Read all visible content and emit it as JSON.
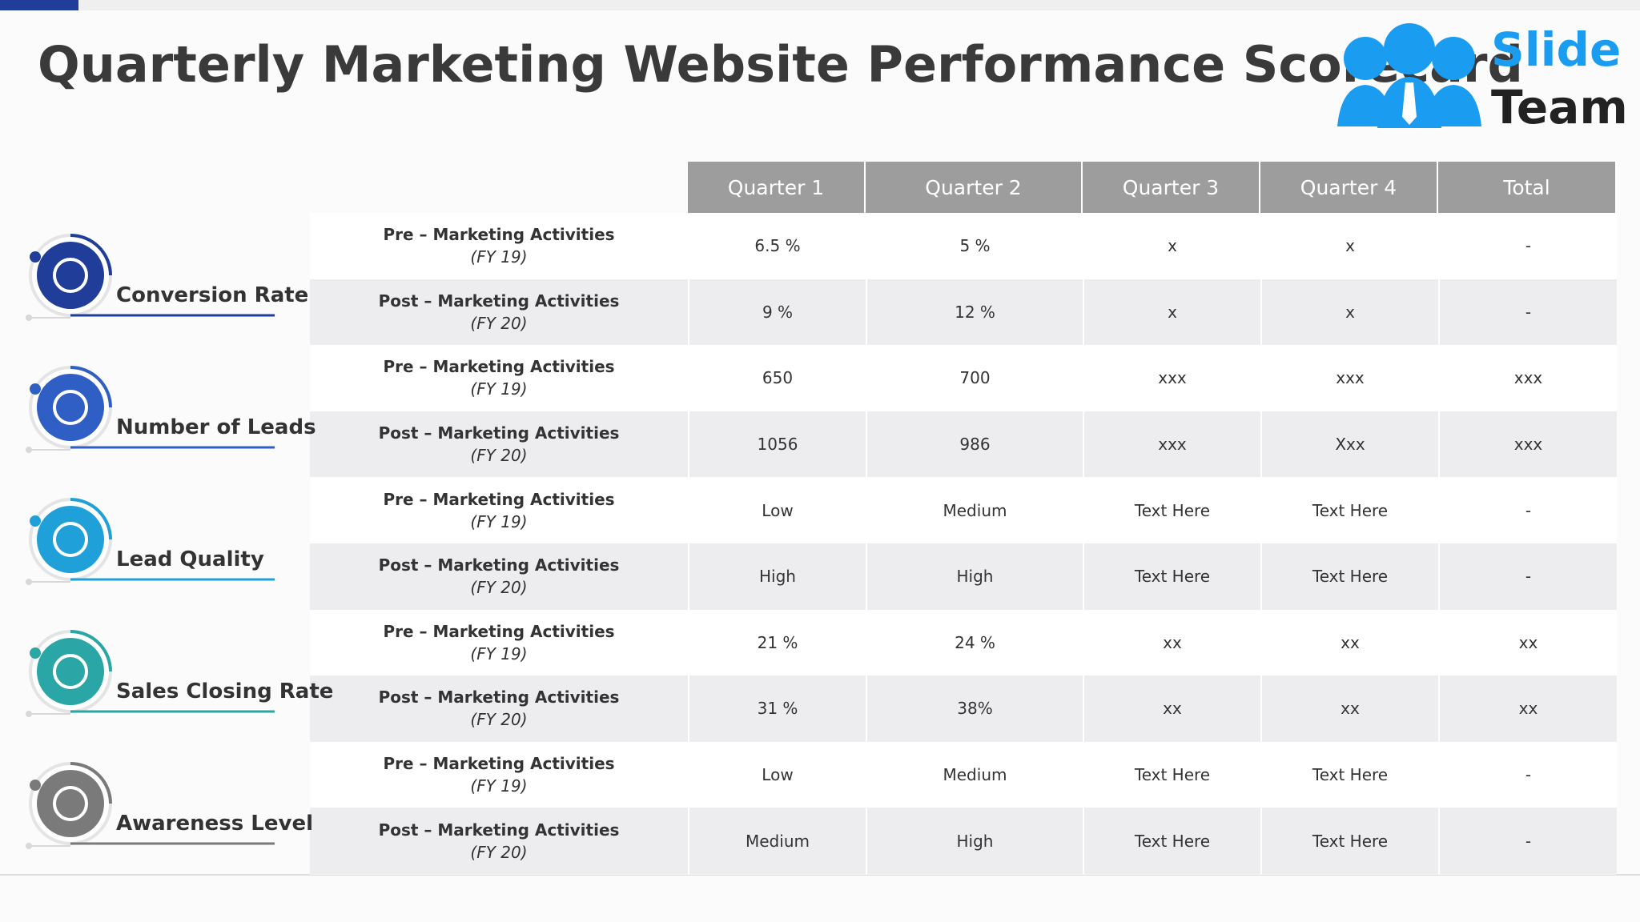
{
  "header": {
    "title": "Quarterly Marketing Website Performance Scorecard"
  },
  "logo": {
    "line1": "Slide",
    "line2": "Team"
  },
  "table": {
    "columns": [
      "Quarter 1",
      "Quarter 2",
      "Quarter 3",
      "Quarter 4",
      "Total"
    ],
    "metrics": [
      "Conversion Rate",
      "Number of Leads",
      "Lead Quality",
      "Sales Closing Rate",
      "Awareness Level"
    ],
    "rows": [
      {
        "activity": "Pre – Marketing Activities",
        "period": "(FY 19)",
        "cells": [
          "6.5 %",
          "5 %",
          "x",
          "x",
          "-"
        ]
      },
      {
        "activity": "Post – Marketing Activities",
        "period": "(FY 20)",
        "cells": [
          "9 %",
          "12 %",
          "x",
          "x",
          "-"
        ]
      },
      {
        "activity": "Pre – Marketing Activities",
        "period": "(FY 19)",
        "cells": [
          "650",
          "700",
          "xxx",
          "xxx",
          "xxx"
        ]
      },
      {
        "activity": "Post – Marketing Activities",
        "period": "(FY 20)",
        "cells": [
          "1056",
          "986",
          "xxx",
          "Xxx",
          "xxx"
        ]
      },
      {
        "activity": "Pre – Marketing Activities",
        "period": "(FY 19)",
        "cells": [
          "Low",
          "Medium",
          "Text Here",
          "Text Here",
          "-"
        ]
      },
      {
        "activity": "Post – Marketing Activities",
        "period": "(FY 20)",
        "cells": [
          "High",
          "High",
          "Text Here",
          "Text Here",
          "-"
        ]
      },
      {
        "activity": "Pre – Marketing Activities",
        "period": "(FY 19)",
        "cells": [
          "21 %",
          "24 %",
          "xx",
          "xx",
          "xx"
        ]
      },
      {
        "activity": "Post – Marketing Activities",
        "period": "(FY 20)",
        "cells": [
          "31 %",
          "38%",
          "xx",
          "xx",
          "xx"
        ]
      },
      {
        "activity": "Pre – Marketing Activities",
        "period": "(FY 19)",
        "cells": [
          "Low",
          "Medium",
          "Text Here",
          "Text Here",
          "-"
        ]
      },
      {
        "activity": "Post – Marketing Activities",
        "period": "(FY 20)",
        "cells": [
          "Medium",
          "High",
          "Text Here",
          "Text Here",
          "-"
        ]
      }
    ]
  }
}
